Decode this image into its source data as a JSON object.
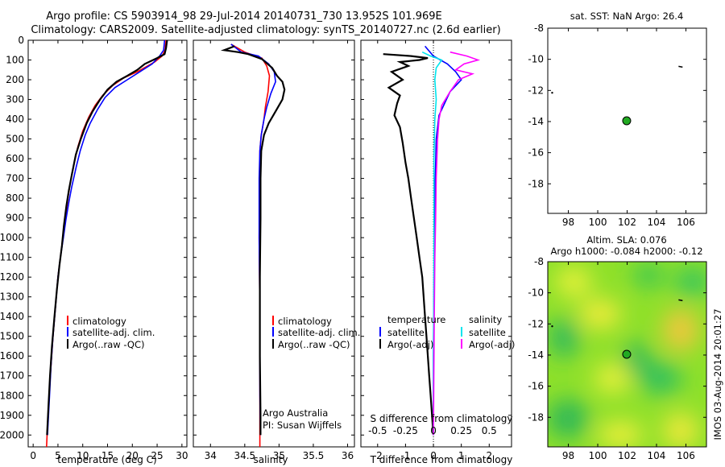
{
  "title_line1": "Argo profile: CS 5903914_98 29-Jul-2014 20140731_730 13.952S 101.969E",
  "title_line2": "Climatology: CARS2009. Satellite-adjusted climatology: synTS_20140727.nc (2.6d earlier)",
  "colors": {
    "climatology": "#ff0000",
    "satellite": "#0000ff",
    "argo": "#000000",
    "sal_satellite": "#00e5ee",
    "sal_argo": "#ff00ff",
    "map_dot": "#22aa22"
  },
  "chart_data": [
    {
      "type": "line",
      "name": "temperature-profile",
      "xlabel": "temperature (deg C)",
      "ylabel": "",
      "xlim": [
        -1,
        31
      ],
      "ylim": [
        2060,
        0
      ],
      "xticks": [
        0,
        5,
        10,
        15,
        20,
        25,
        30
      ],
      "yticks": [
        0,
        100,
        200,
        300,
        400,
        500,
        600,
        700,
        800,
        900,
        1000,
        1100,
        1200,
        1300,
        1400,
        1500,
        1600,
        1700,
        1800,
        1900,
        2000
      ],
      "legend": [
        "climatology",
        "satellite-adj. clim.",
        "Argo(..raw -QC)"
      ],
      "series": [
        {
          "name": "climatology",
          "color": "red",
          "points": [
            [
              26.8,
              0
            ],
            [
              26.6,
              50
            ],
            [
              26,
              80
            ],
            [
              24.5,
              110
            ],
            [
              21,
              160
            ],
            [
              18.3,
              190
            ],
            [
              16,
              230
            ],
            [
              14,
              280
            ],
            [
              12.5,
              330
            ],
            [
              11.2,
              390
            ],
            [
              10,
              460
            ],
            [
              9,
              540
            ],
            [
              8.3,
              620
            ],
            [
              7.5,
              720
            ],
            [
              7,
              800
            ],
            [
              6.5,
              900
            ],
            [
              6,
              1000
            ],
            [
              5.5,
              1100
            ],
            [
              5,
              1200
            ],
            [
              4.5,
              1350
            ],
            [
              4,
              1500
            ],
            [
              3.6,
              1650
            ],
            [
              3.2,
              1800
            ],
            [
              2.9,
              1950
            ],
            [
              2.7,
              2060
            ]
          ]
        },
        {
          "name": "satellite-adj. clim.",
          "color": "blue",
          "points": [
            [
              26.5,
              0
            ],
            [
              26.3,
              50
            ],
            [
              25.5,
              80
            ],
            [
              24,
              120
            ],
            [
              21.5,
              160
            ],
            [
              19,
              200
            ],
            [
              16.5,
              240
            ],
            [
              14.5,
              290
            ],
            [
              13,
              350
            ],
            [
              11.5,
              420
            ],
            [
              10.5,
              480
            ],
            [
              9.5,
              560
            ],
            [
              8.7,
              640
            ],
            [
              7.8,
              740
            ],
            [
              7.2,
              820
            ],
            [
              6.6,
              910
            ],
            [
              6.1,
              1000
            ],
            [
              5.5,
              1100
            ],
            [
              5,
              1200
            ],
            [
              4.5,
              1350
            ],
            [
              4,
              1500
            ],
            [
              3.6,
              1650
            ],
            [
              3.3,
              1800
            ],
            [
              3,
              1950
            ],
            [
              2.9,
              2000
            ]
          ]
        },
        {
          "name": "Argo(..raw -QC)",
          "color": "black",
          "points": [
            [
              27,
              0
            ],
            [
              26.8,
              40
            ],
            [
              26.5,
              70
            ],
            [
              25,
              90
            ],
            [
              22.5,
              120
            ],
            [
              21,
              150
            ],
            [
              19,
              180
            ],
            [
              16.8,
              210
            ],
            [
              15,
              250
            ],
            [
              13.5,
              300
            ],
            [
              12,
              360
            ],
            [
              10.8,
              420
            ],
            [
              9.6,
              500
            ],
            [
              8.6,
              580
            ],
            [
              7.8,
              680
            ],
            [
              7.2,
              760
            ],
            [
              6.7,
              840
            ],
            [
              6.2,
              940
            ],
            [
              5.8,
              1040
            ],
            [
              5.3,
              1140
            ],
            [
              4.8,
              1260
            ],
            [
              4.3,
              1400
            ],
            [
              3.8,
              1550
            ],
            [
              3.4,
              1700
            ],
            [
              3.1,
              1850
            ],
            [
              2.9,
              1950
            ],
            [
              2.8,
              2000
            ]
          ]
        }
      ]
    },
    {
      "type": "line",
      "name": "salinity-profile",
      "xlabel": "salinity",
      "xlim": [
        33.75,
        36.1
      ],
      "ylim": [
        2060,
        0
      ],
      "xticks": [
        34,
        34.5,
        35,
        35.5,
        36
      ],
      "xtick_labels": [
        "34",
        "34.5",
        "35",
        "35.5",
        "36"
      ],
      "legend": [
        "climatology",
        "satellite-adj. clim.",
        "Argo(..raw -QC)"
      ],
      "annotations": [
        "Argo Australia",
        "PI: Susan Wijffels"
      ],
      "series": [
        {
          "name": "climatology",
          "color": "red",
          "points": [
            [
              34.3,
              20
            ],
            [
              34.5,
              60
            ],
            [
              34.75,
              90
            ],
            [
              34.82,
              130
            ],
            [
              34.86,
              180
            ],
            [
              34.84,
              260
            ],
            [
              34.8,
              340
            ],
            [
              34.78,
              400
            ],
            [
              34.74,
              480
            ],
            [
              34.72,
              560
            ],
            [
              34.72,
              700
            ],
            [
              34.71,
              1000
            ],
            [
              34.72,
              1400
            ],
            [
              34.72,
              1800
            ],
            [
              34.72,
              2060
            ]
          ]
        },
        {
          "name": "satellite-adj. clim.",
          "color": "blue",
          "points": [
            [
              34.3,
              20
            ],
            [
              34.45,
              60
            ],
            [
              34.7,
              80
            ],
            [
              34.85,
              120
            ],
            [
              34.93,
              160
            ],
            [
              34.95,
              210
            ],
            [
              34.88,
              270
            ],
            [
              34.82,
              340
            ],
            [
              34.78,
              400
            ],
            [
              34.74,
              480
            ],
            [
              34.72,
              560
            ],
            [
              34.71,
              700
            ],
            [
              34.71,
              1000
            ],
            [
              34.72,
              1400
            ],
            [
              34.72,
              1800
            ],
            [
              34.73,
              2000
            ]
          ]
        },
        {
          "name": "Argo(..raw -QC)",
          "color": "black",
          "points": [
            [
              34.35,
              30
            ],
            [
              34.2,
              50
            ],
            [
              34.4,
              60
            ],
            [
              34.55,
              70
            ],
            [
              34.75,
              95
            ],
            [
              34.9,
              140
            ],
            [
              34.97,
              180
            ],
            [
              35.05,
              210
            ],
            [
              35.08,
              250
            ],
            [
              35.05,
              300
            ],
            [
              34.95,
              360
            ],
            [
              34.85,
              420
            ],
            [
              34.78,
              480
            ],
            [
              34.74,
              560
            ],
            [
              34.73,
              700
            ],
            [
              34.73,
              900
            ],
            [
              34.72,
              1200
            ],
            [
              34.72,
              1600
            ],
            [
              34.73,
              1900
            ],
            [
              34.73,
              2000
            ]
          ]
        }
      ]
    },
    {
      "type": "line",
      "name": "difference-profile",
      "xlabel": "T difference from climatology",
      "x2label": "S difference from climatology",
      "xlim": [
        -2.6,
        2.8
      ],
      "ylim": [
        2060,
        0
      ],
      "xticks": [
        -2,
        -1,
        0,
        1,
        2
      ],
      "x2ticks": [
        -0.5,
        -0.25,
        0,
        0.25,
        0.5
      ],
      "x2tick_labels": [
        "-0.5",
        "-0.25",
        "0",
        "0.25",
        "0.5"
      ],
      "legend_headers": [
        "temperature",
        "salinity"
      ],
      "legend": [
        "satellite",
        "Argo(-adj)",
        "satellite",
        "Argo(-adj)"
      ],
      "series": [
        {
          "name": "T satellite",
          "color": "blue",
          "points": [
            [
              -0.3,
              30
            ],
            [
              0,
              80
            ],
            [
              0.5,
              120
            ],
            [
              0.8,
              160
            ],
            [
              1.0,
              200
            ],
            [
              0.6,
              260
            ],
            [
              0.4,
              320
            ],
            [
              0.2,
              380
            ],
            [
              0.1,
              500
            ],
            [
              0.05,
              800
            ],
            [
              0.02,
              1200
            ],
            [
              0,
              1600
            ],
            [
              0,
              2000
            ]
          ]
        },
        {
          "name": "T Argo(-adj)",
          "color": "black",
          "points": [
            [
              -1.8,
              70
            ],
            [
              -0.8,
              80
            ],
            [
              -0.2,
              90
            ],
            [
              -0.5,
              100
            ],
            [
              -1.2,
              110
            ],
            [
              -0.9,
              130
            ],
            [
              -1.5,
              160
            ],
            [
              -1.1,
              200
            ],
            [
              -1.6,
              240
            ],
            [
              -1.2,
              280
            ],
            [
              -1.3,
              320
            ],
            [
              -1.4,
              380
            ],
            [
              -1.2,
              440
            ],
            [
              -1.1,
              520
            ],
            [
              -1.0,
              620
            ],
            [
              -0.9,
              700
            ],
            [
              -0.8,
              800
            ],
            [
              -0.7,
              900
            ],
            [
              -0.6,
              1000
            ],
            [
              -0.5,
              1100
            ],
            [
              -0.4,
              1200
            ],
            [
              -0.35,
              1300
            ],
            [
              -0.3,
              1400
            ],
            [
              -0.25,
              1500
            ],
            [
              -0.2,
              1600
            ],
            [
              -0.15,
              1700
            ],
            [
              -0.1,
              1800
            ],
            [
              -0.05,
              1900
            ],
            [
              0,
              2000
            ]
          ]
        },
        {
          "name": "S satellite",
          "color": "cyan",
          "points": [
            [
              -0.4,
              60
            ],
            [
              -0.1,
              80
            ],
            [
              0.3,
              100
            ],
            [
              0.1,
              140
            ],
            [
              0.05,
              200
            ],
            [
              0.1,
              300
            ],
            [
              0.05,
              400
            ],
            [
              0.02,
              600
            ],
            [
              0.02,
              900
            ],
            [
              0.01,
              1300
            ],
            [
              0,
              1700
            ],
            [
              0,
              2000
            ]
          ]
        },
        {
          "name": "S Argo(-adj)",
          "color": "magenta",
          "points": [
            [
              0.6,
              60
            ],
            [
              1.2,
              80
            ],
            [
              1.6,
              100
            ],
            [
              1.1,
              120
            ],
            [
              0.8,
              150
            ],
            [
              1.4,
              170
            ],
            [
              0.9,
              200
            ],
            [
              0.6,
              260
            ],
            [
              0.3,
              330
            ],
            [
              0.2,
              400
            ],
            [
              0.15,
              500
            ],
            [
              0.1,
              700
            ],
            [
              0.08,
              900
            ],
            [
              0.05,
              1100
            ],
            [
              0.03,
              1400
            ],
            [
              0,
              2000
            ]
          ]
        }
      ]
    },
    {
      "type": "scatter",
      "name": "sst-map",
      "title": "sat. SST: NaN Argo: 26.4",
      "xlim": [
        96.6,
        107.4
      ],
      "ylim": [
        -19.9,
        -8
      ],
      "xticks": [
        98,
        100,
        102,
        104,
        106
      ],
      "yticks": [
        -8,
        -10,
        -12,
        -14,
        -16,
        -18
      ],
      "points": [
        {
          "x": 101.97,
          "y": -13.95,
          "label": "Argo"
        }
      ]
    },
    {
      "type": "heatmap",
      "name": "sla-map",
      "title_line1": "Altim. SLA: 0.076",
      "title_line2": "Argo h1000: -0.084 h2000: -0.12",
      "xlim": [
        96.6,
        107.4
      ],
      "ylim": [
        -19.9,
        -8
      ],
      "xticks": [
        98,
        100,
        102,
        104,
        106
      ],
      "yticks": [
        -8,
        -10,
        -12,
        -14,
        -16,
        -18
      ],
      "points": [
        {
          "x": 101.97,
          "y": -13.95,
          "label": "Argo"
        }
      ]
    }
  ],
  "side_label": "IMOS 03-Aug-2014 20:01:27"
}
